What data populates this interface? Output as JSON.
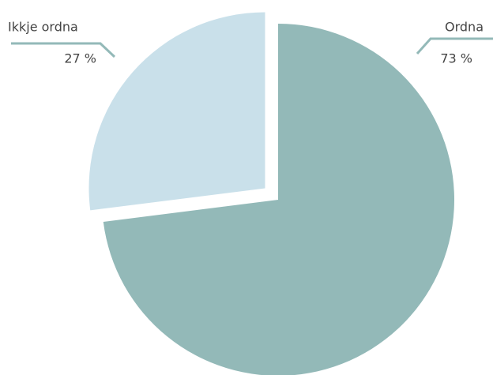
{
  "chart_data": {
    "type": "pie",
    "categories": [
      "Ordna",
      "Ikkje ordna"
    ],
    "values": [
      73,
      27
    ],
    "value_labels": [
      "73 %",
      "27 %"
    ],
    "colors": [
      "#93b9b8",
      "#c9e0ea"
    ],
    "exploded": [
      false,
      true
    ]
  }
}
